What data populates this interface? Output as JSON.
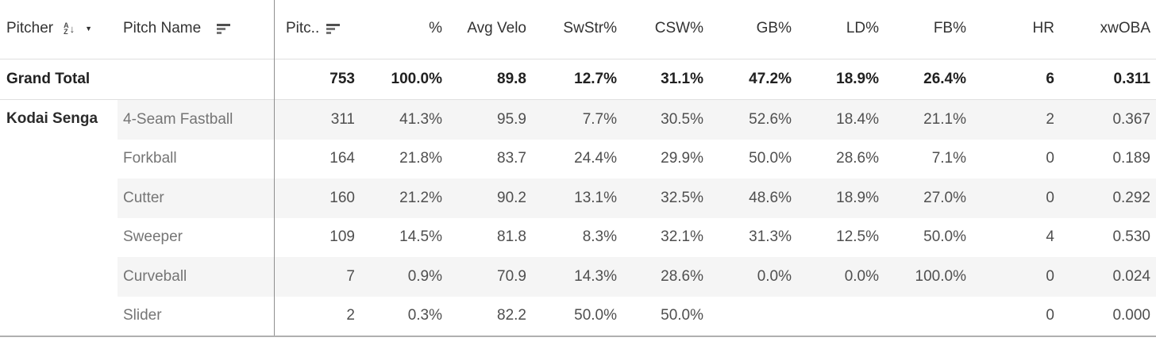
{
  "chart_data": {
    "type": "table",
    "columns": [
      "Pitcher",
      "Pitch Name",
      "Pitc..",
      "%",
      "Avg Velo",
      "SwStr%",
      "CSW%",
      "GB%",
      "LD%",
      "FB%",
      "HR",
      "xwOBA"
    ],
    "grand_total": {
      "label": "Grand Total",
      "pitches": "753",
      "pct": "100.0%",
      "avg_velo": "89.8",
      "swstr": "12.7%",
      "csw": "31.1%",
      "gb": "47.2%",
      "ld": "18.9%",
      "fb": "26.4%",
      "hr": "6",
      "xwoba": "0.311"
    },
    "pitcher": "Kodai Senga",
    "rows": [
      {
        "pitch_name": "4-Seam Fastball",
        "pitches": "311",
        "pct": "41.3%",
        "avg_velo": "95.9",
        "swstr": "7.7%",
        "csw": "30.5%",
        "gb": "52.6%",
        "ld": "18.4%",
        "fb": "21.1%",
        "hr": "2",
        "xwoba": "0.367"
      },
      {
        "pitch_name": "Forkball",
        "pitches": "164",
        "pct": "21.8%",
        "avg_velo": "83.7",
        "swstr": "24.4%",
        "csw": "29.9%",
        "gb": "50.0%",
        "ld": "28.6%",
        "fb": "7.1%",
        "hr": "0",
        "xwoba": "0.189"
      },
      {
        "pitch_name": "Cutter",
        "pitches": "160",
        "pct": "21.2%",
        "avg_velo": "90.2",
        "swstr": "13.1%",
        "csw": "32.5%",
        "gb": "48.6%",
        "ld": "18.9%",
        "fb": "27.0%",
        "hr": "0",
        "xwoba": "0.292"
      },
      {
        "pitch_name": "Sweeper",
        "pitches": "109",
        "pct": "14.5%",
        "avg_velo": "81.8",
        "swstr": "8.3%",
        "csw": "32.1%",
        "gb": "31.3%",
        "ld": "12.5%",
        "fb": "50.0%",
        "hr": "4",
        "xwoba": "0.530"
      },
      {
        "pitch_name": "Curveball",
        "pitches": "7",
        "pct": "0.9%",
        "avg_velo": "70.9",
        "swstr": "14.3%",
        "csw": "28.6%",
        "gb": "0.0%",
        "ld": "0.0%",
        "fb": "100.0%",
        "hr": "0",
        "xwoba": "0.024"
      },
      {
        "pitch_name": "Slider",
        "pitches": "2",
        "pct": "0.3%",
        "avg_velo": "82.2",
        "swstr": "50.0%",
        "csw": "50.0%",
        "gb": "",
        "ld": "",
        "fb": "",
        "hr": "0",
        "xwoba": "0.000"
      }
    ]
  },
  "icons": {
    "sort_alpha": "A-Z descending-sort control on Pitcher column",
    "caret": "▼",
    "az_a": "A",
    "az_z": "Z",
    "az_arrow": "↓"
  },
  "colors": {
    "stripe": "#f5f5f5",
    "divider": "#8f8f8f",
    "row_border": "#e0e0e0",
    "bottom_border": "#b0b0b0",
    "header_text": "#333333",
    "pitch_name_text": "#757575",
    "value_text": "#4f4f4f"
  }
}
